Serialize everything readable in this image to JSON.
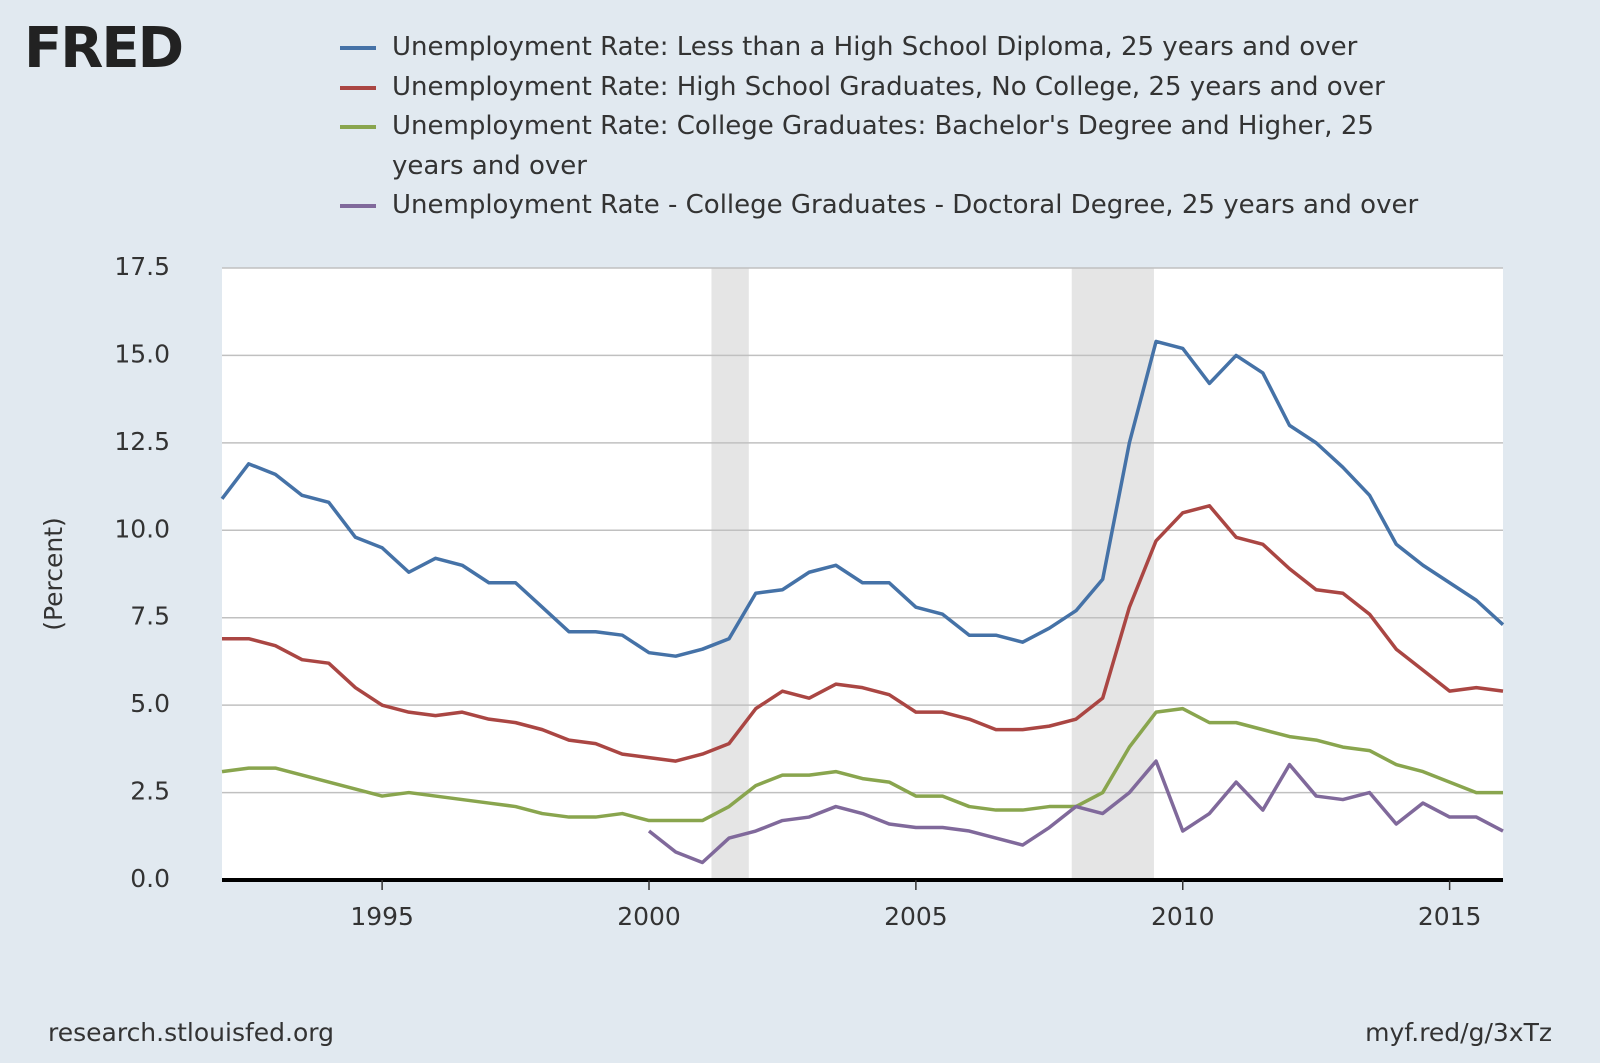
{
  "chart_data": {
    "type": "line",
    "logo": "FRED",
    "y_label": "(Percent)",
    "source": "research.stlouisfed.org",
    "link": "myf.red/g/3xTz",
    "x": [
      1992,
      1992.5,
      1993,
      1993.5,
      1994,
      1994.5,
      1995,
      1995.5,
      1996,
      1996.5,
      1997,
      1997.5,
      1998,
      1998.5,
      1999,
      1999.5,
      2000,
      2000.5,
      2001,
      2001.5,
      2002,
      2002.5,
      2003,
      2003.5,
      2004,
      2004.5,
      2005,
      2005.5,
      2006,
      2006.5,
      2007,
      2007.5,
      2008,
      2008.5,
      2009,
      2009.5,
      2010,
      2010.5,
      2011,
      2011.5,
      2012,
      2012.5,
      2013,
      2013.5,
      2014,
      2014.5,
      2015,
      2015.5,
      2016
    ],
    "series": [
      {
        "name": "Unemployment Rate: Less than a High School Diploma, 25 years and over",
        "color": "#4572a7",
        "values": [
          10.9,
          11.9,
          11.6,
          11.0,
          10.8,
          9.8,
          9.5,
          8.8,
          9.2,
          9.0,
          8.5,
          8.5,
          7.8,
          7.1,
          7.1,
          7.0,
          6.5,
          6.4,
          6.6,
          6.9,
          8.2,
          8.3,
          8.8,
          9.0,
          8.5,
          8.5,
          7.8,
          7.6,
          7.0,
          7.0,
          6.8,
          7.2,
          7.7,
          8.6,
          12.5,
          15.4,
          15.2,
          14.2,
          15.0,
          14.5,
          13.0,
          12.5,
          11.8,
          11.0,
          9.6,
          9.0,
          8.5,
          8.0,
          7.3
        ]
      },
      {
        "name": "Unemployment Rate: High School Graduates, No College, 25 years and over",
        "color": "#aa4643",
        "values": [
          6.9,
          6.9,
          6.7,
          6.3,
          6.2,
          5.5,
          5.0,
          4.8,
          4.7,
          4.8,
          4.6,
          4.5,
          4.3,
          4.0,
          3.9,
          3.6,
          3.5,
          3.4,
          3.6,
          3.9,
          4.9,
          5.4,
          5.2,
          5.6,
          5.5,
          5.3,
          4.8,
          4.8,
          4.6,
          4.3,
          4.3,
          4.4,
          4.6,
          5.2,
          7.8,
          9.7,
          10.5,
          10.7,
          9.8,
          9.6,
          8.9,
          8.3,
          8.2,
          7.6,
          6.6,
          6.0,
          5.4,
          5.5,
          5.4
        ]
      },
      {
        "name": "Unemployment Rate: College Graduates: Bachelor's Degree and Higher, 25 years and over",
        "color": "#89a54e",
        "values": [
          3.1,
          3.2,
          3.2,
          3.0,
          2.8,
          2.6,
          2.4,
          2.5,
          2.4,
          2.3,
          2.2,
          2.1,
          1.9,
          1.8,
          1.8,
          1.9,
          1.7,
          1.7,
          1.7,
          2.1,
          2.7,
          3.0,
          3.0,
          3.1,
          2.9,
          2.8,
          2.4,
          2.4,
          2.1,
          2.0,
          2.0,
          2.1,
          2.1,
          2.5,
          3.8,
          4.8,
          4.9,
          4.5,
          4.5,
          4.3,
          4.1,
          4.0,
          3.8,
          3.7,
          3.3,
          3.1,
          2.8,
          2.5,
          2.5
        ]
      },
      {
        "name": "Unemployment Rate - College Graduates - Doctoral Degree, 25 years and over",
        "color": "#80699b",
        "values": [
          null,
          null,
          null,
          null,
          null,
          null,
          null,
          null,
          null,
          null,
          null,
          null,
          null,
          null,
          null,
          null,
          1.4,
          0.8,
          0.5,
          1.2,
          1.4,
          1.7,
          1.8,
          2.1,
          1.9,
          1.6,
          1.5,
          1.5,
          1.4,
          1.2,
          1.0,
          1.5,
          2.1,
          1.9,
          2.5,
          3.4,
          1.4,
          1.9,
          2.8,
          2.0,
          3.3,
          2.4,
          2.3,
          2.5,
          1.6,
          2.2,
          1.8,
          1.8,
          1.4
        ]
      }
    ],
    "recessions": [
      [
        2001.17,
        2001.87
      ],
      [
        2007.92,
        2009.46
      ]
    ],
    "xlim": [
      1992,
      2016
    ],
    "xticks": [
      1995,
      2000,
      2005,
      2010,
      2015
    ],
    "ylim": [
      0,
      17.5
    ],
    "yticks": [
      {
        "value": 0,
        "label": "0.0"
      },
      2.5,
      {
        "value": 5,
        "label": "5.0"
      },
      7.5,
      {
        "value": 10,
        "label": "10.0"
      },
      12.5,
      {
        "value": 15,
        "label": "15.0"
      },
      17.5
    ],
    "grid": true
  }
}
